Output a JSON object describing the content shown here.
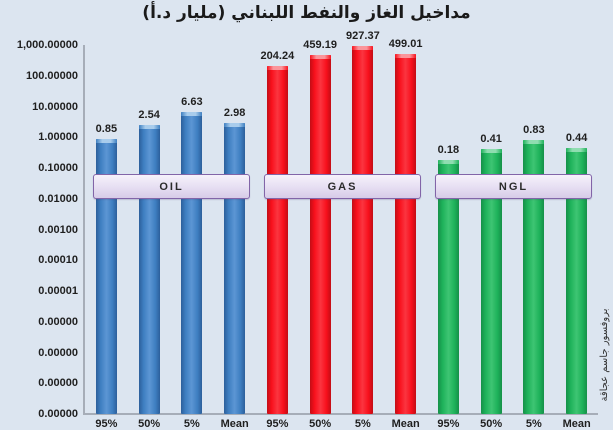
{
  "title": "مداخيل الغاز والنفط اللبناني (مليار د.أ)",
  "watermark": "بروفسور جاسم عجاقة",
  "colors": {
    "background": "#DCE5F0",
    "axis": "#A6ADB8",
    "title_text": "#1A1A1A",
    "band_border": "#8265A8",
    "band_fill": "#E6DEF2"
  },
  "chart_data": {
    "type": "bar",
    "scale": "log10",
    "title": "مداخيل الغاز والنفط اللبناني (مليار د.أ)",
    "categories": [
      "95%",
      "50%",
      "5%",
      "Mean"
    ],
    "series": [
      {
        "name": "OIL",
        "values": [
          0.85,
          2.54,
          6.63,
          2.98
        ],
        "labels": [
          "0.85",
          "2.54",
          "6.63",
          "2.98"
        ],
        "color_main": "#3E7FC1",
        "color_light": "#5C96D4",
        "color_edge": "#2C5F9B",
        "color_cap": "#A8CCEC"
      },
      {
        "name": "GAS",
        "values": [
          204.24,
          459.19,
          927.37,
          499.01
        ],
        "labels": [
          "204.24",
          "459.19",
          "927.37",
          "499.01"
        ],
        "color_main": "#F8101C",
        "color_light": "#FB3540",
        "color_edge": "#C20D15",
        "color_cap": "#FB959B"
      },
      {
        "name": "NGL",
        "values": [
          0.18,
          0.41,
          0.83,
          0.44
        ],
        "labels": [
          "0.18",
          "0.41",
          "0.83",
          "0.44"
        ],
        "color_main": "#1EB25A",
        "color_light": "#3EC573",
        "color_edge": "#159048",
        "color_cap": "#8FDDB0"
      }
    ],
    "y_ticks": [
      "1,000.00000",
      "100.00000",
      "10.00000",
      "1.00000",
      "0.10000",
      "0.01000",
      "0.00100",
      "0.00010",
      "0.00001",
      "0.00000",
      "0.00000",
      "0.00000",
      "0.00000"
    ],
    "ylim": [
      1e-09,
      1000
    ],
    "ylim_log": [
      -9,
      3
    ],
    "grid": false,
    "legend": "none"
  }
}
